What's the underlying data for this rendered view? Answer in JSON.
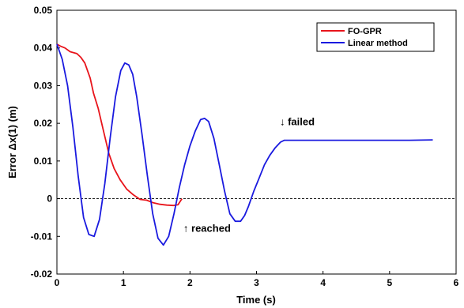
{
  "chart_data": {
    "type": "line",
    "title": "",
    "xlabel": "Time  (s)",
    "ylabel": "Error   Δx(1)   (m)",
    "xlim": [
      0,
      6
    ],
    "ylim": [
      -0.02,
      0.05
    ],
    "xticks": [
      0,
      1,
      2,
      3,
      4,
      5,
      6
    ],
    "yticks": [
      -0.02,
      -0.01,
      0,
      0.01,
      0.02,
      0.03,
      0.04,
      0.05
    ],
    "xtick_labels": [
      "0",
      "1",
      "2",
      "3",
      "4",
      "5",
      "6"
    ],
    "ytick_labels": [
      "-0.02",
      "-0.01",
      "0",
      "0.01",
      "0.02",
      "0.03",
      "0.04",
      "0.05"
    ],
    "grid": false,
    "legend_position": "top-right",
    "reference_line": {
      "y": 0,
      "style": "dashed"
    },
    "series": [
      {
        "name": "FO-GPR",
        "color": "#e8141b",
        "x": [
          0,
          0.05,
          0.12,
          0.2,
          0.3,
          0.36,
          0.42,
          0.5,
          0.55,
          0.62,
          0.7,
          0.78,
          0.86,
          0.95,
          1.05,
          1.15,
          1.25,
          1.35,
          1.45,
          1.55,
          1.65,
          1.75,
          1.82,
          1.88
        ],
        "y": [
          0.041,
          0.0405,
          0.04,
          0.039,
          0.0385,
          0.0375,
          0.036,
          0.032,
          0.028,
          0.024,
          0.018,
          0.012,
          0.008,
          0.005,
          0.0025,
          0.001,
          -0.0002,
          -0.0004,
          -0.0011,
          -0.0015,
          -0.0017,
          -0.0018,
          -0.0016,
          0
        ]
      },
      {
        "name": "Linear method",
        "color": "#1a1adf",
        "x": [
          0,
          0.08,
          0.16,
          0.24,
          0.32,
          0.4,
          0.48,
          0.56,
          0.64,
          0.72,
          0.8,
          0.88,
          0.96,
          1.02,
          1.08,
          1.14,
          1.2,
          1.28,
          1.36,
          1.44,
          1.52,
          1.6,
          1.68,
          1.76,
          1.84,
          1.92,
          2.0,
          2.08,
          2.16,
          2.22,
          2.28,
          2.36,
          2.44,
          2.52,
          2.6,
          2.68,
          2.76,
          2.82,
          2.88,
          2.96,
          3.04,
          3.12,
          3.2,
          3.28,
          3.36,
          3.42,
          3.6,
          4.0,
          4.5,
          5.0,
          5.3,
          5.65
        ],
        "y": [
          0.041,
          0.037,
          0.03,
          0.019,
          0.006,
          -0.005,
          -0.0095,
          -0.01,
          -0.0055,
          0.004,
          0.016,
          0.027,
          0.034,
          0.036,
          0.0355,
          0.033,
          0.027,
          0.017,
          0.006,
          -0.004,
          -0.0105,
          -0.0123,
          -0.01,
          -0.004,
          0.003,
          0.009,
          0.014,
          0.018,
          0.021,
          0.0213,
          0.0205,
          0.016,
          0.009,
          0.002,
          -0.004,
          -0.006,
          -0.006,
          -0.0045,
          -0.002,
          0.002,
          0.0055,
          0.009,
          0.0115,
          0.0135,
          0.015,
          0.0155,
          0.0155,
          0.0155,
          0.0155,
          0.0155,
          0.0155,
          0.0156
        ]
      }
    ],
    "annotations": [
      {
        "text": "↓ failed",
        "x": 3.35,
        "y": 0.0195
      },
      {
        "text": "↑ reached",
        "x": 1.9,
        "y": -0.0088
      }
    ]
  }
}
